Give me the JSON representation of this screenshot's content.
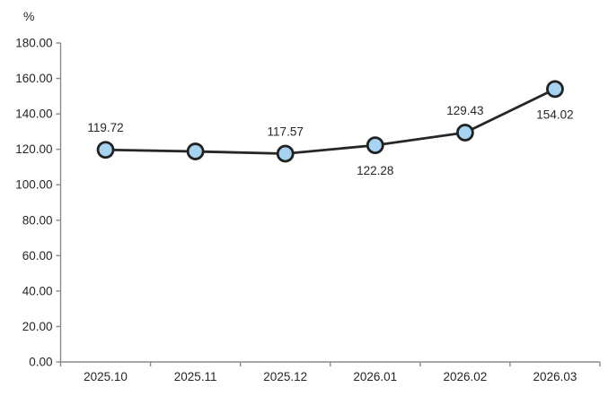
{
  "chart": {
    "unit_label": "%",
    "chart_data": {
      "type": "line",
      "categories": [
        "2025.10",
        "2025.11",
        "2025.12",
        "2026.01",
        "2026.02",
        "2026.03"
      ],
      "values": [
        119.72,
        118.8,
        117.57,
        122.28,
        129.43,
        154.02
      ],
      "data_labels": [
        "119.72",
        "",
        "117.57",
        "122.28",
        "129.43",
        "154.02"
      ],
      "label_positions": [
        "above",
        "none",
        "above",
        "below",
        "above",
        "below"
      ],
      "title": "",
      "xlabel": "",
      "ylabel": "%",
      "ylim": [
        0,
        180
      ],
      "ytick_step": 20,
      "ytick_labels": [
        "0.00",
        "20.00",
        "40.00",
        "60.00",
        "80.00",
        "100.00",
        "120.00",
        "140.00",
        "160.00",
        "180.00"
      ],
      "grid": false,
      "legend": "none",
      "colors": {
        "line": "#262626",
        "marker_fill": "#a5d3f0",
        "marker_stroke": "#222222",
        "axis": "#8a8a8a",
        "text": "#262626",
        "background": "#ffffff"
      }
    }
  }
}
